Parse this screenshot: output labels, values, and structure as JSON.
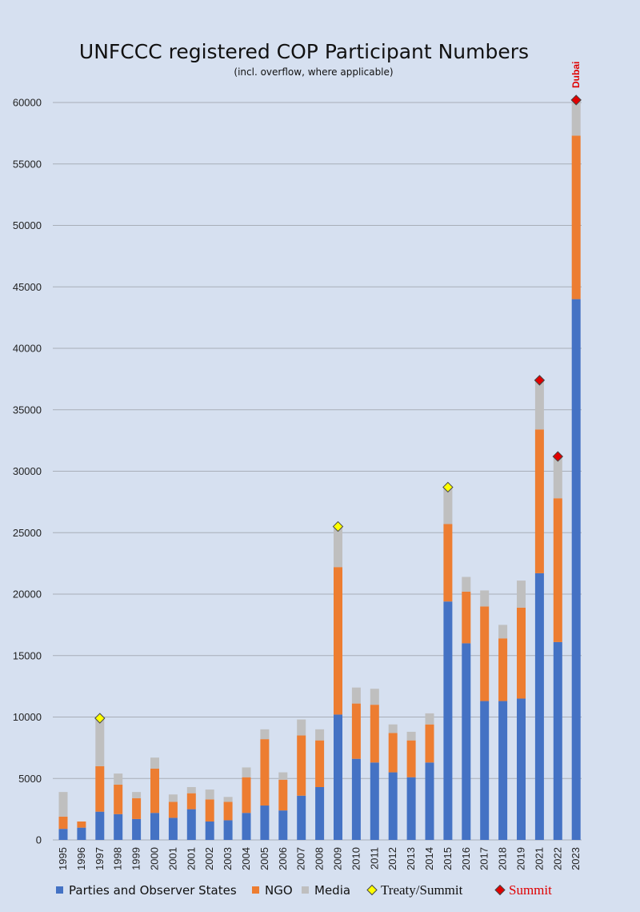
{
  "chart_data": {
    "type": "bar",
    "stacked": true,
    "title": "UNFCCC registered COP Participant Numbers",
    "subtitle": "(incl. overflow, where applicable)",
    "xlabel": "",
    "ylabel": "",
    "ylim": [
      0,
      60000
    ],
    "yticks": [
      0,
      5000,
      10000,
      15000,
      20000,
      25000,
      30000,
      35000,
      40000,
      45000,
      50000,
      55000,
      60000
    ],
    "grid": true,
    "legend_position": "bottom",
    "categories": [
      "1995",
      "1996",
      "1997",
      "1998",
      "1999",
      "2000",
      "2001",
      "2001",
      "2002",
      "2003",
      "2004",
      "2005",
      "2006",
      "2007",
      "2008",
      "2009",
      "2010",
      "2011",
      "2012",
      "2013",
      "2014",
      "2015",
      "2016",
      "2017",
      "2018",
      "2019",
      "2021",
      "2022",
      "2023"
    ],
    "series": [
      {
        "name": "Parties and Observer States",
        "color": "#4472c4",
        "values": [
          900,
          1000,
          2300,
          2100,
          1700,
          2200,
          1800,
          2500,
          1500,
          1600,
          2200,
          2800,
          2400,
          3600,
          4300,
          10200,
          6600,
          6300,
          5500,
          5100,
          6300,
          19400,
          16000,
          11300,
          11300,
          11500,
          21700,
          16100,
          44000
        ]
      },
      {
        "name": "NGO",
        "color": "#ed7d31",
        "values": [
          1000,
          500,
          3700,
          2400,
          1700,
          3600,
          1300,
          1300,
          1800,
          1500,
          2900,
          5400,
          2500,
          4900,
          3800,
          12000,
          4500,
          4700,
          3200,
          3000,
          3100,
          6300,
          4200,
          7700,
          5100,
          7400,
          11700,
          11700,
          13300
        ]
      },
      {
        "name": "Media",
        "color": "#bfbfbf",
        "values": [
          2000,
          0,
          3900,
          900,
          500,
          900,
          600,
          500,
          800,
          400,
          800,
          800,
          600,
          1300,
          900,
          3300,
          1300,
          1300,
          700,
          700,
          900,
          3000,
          1200,
          1300,
          1100,
          2200,
          4000,
          3400,
          2900
        ]
      }
    ],
    "markers": [
      {
        "name": "Treaty/Summit",
        "color": "#ffff00",
        "indices": [
          2,
          15,
          21
        ]
      },
      {
        "name": "Summit",
        "color": "#e00000",
        "indices": [
          26,
          27,
          28
        ]
      }
    ],
    "annotations": [
      {
        "text": "Dubai",
        "index": 28,
        "color": "#e00000"
      }
    ]
  }
}
